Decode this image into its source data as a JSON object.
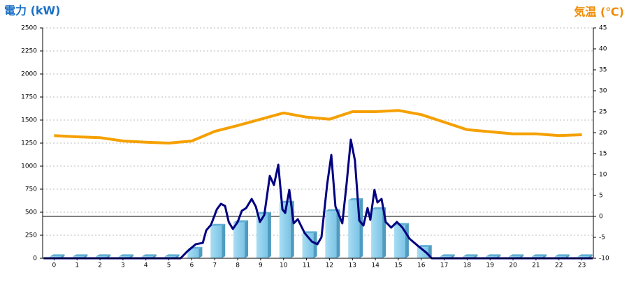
{
  "chart_data": {
    "type": "bar",
    "ylabel": "電力 (kW)",
    "y2label": "気温 (℃)",
    "categories": [
      "0",
      "1",
      "2",
      "3",
      "4",
      "5",
      "6",
      "7",
      "8",
      "9",
      "10",
      "11",
      "12",
      "13",
      "14",
      "15",
      "16",
      "17",
      "18",
      "19",
      "20",
      "21",
      "22",
      "23"
    ],
    "xlim": [
      -0.5,
      23.5
    ],
    "ylim": [
      0,
      2500
    ],
    "yticks": [
      0,
      250,
      500,
      750,
      1000,
      1250,
      1500,
      1750,
      2000,
      2250,
      2500
    ],
    "y2lim": [
      -10,
      45
    ],
    "y2ticks": [
      -10,
      -5,
      0,
      5,
      10,
      15,
      20,
      25,
      30,
      35,
      40,
      45
    ],
    "grid": true,
    "series": [
      {
        "type": "bar",
        "color": "#87ceeb",
        "values": [
          20,
          20,
          20,
          20,
          20,
          20,
          100,
          350,
          390,
          480,
          600,
          270,
          510,
          630,
          530,
          360,
          120,
          20,
          20,
          20,
          20,
          20,
          20,
          20
        ]
      },
      {
        "type": "line",
        "axis": "y2",
        "color": "#f5a000",
        "values": [
          19.3,
          19,
          18.8,
          18,
          17.7,
          17.5,
          18,
          20.3,
          21.7,
          23.2,
          24.7,
          23.7,
          23.2,
          25,
          25,
          25.3,
          24.3,
          22.5,
          20.7,
          20.2,
          19.7,
          19.7,
          19.3,
          19.5
        ]
      },
      {
        "type": "line",
        "color": "#000080",
        "x": [
          -0.46,
          5.51,
          5.81,
          6.17,
          6.48,
          6.63,
          6.84,
          7.09,
          7.27,
          7.45,
          7.61,
          7.79,
          8.0,
          8.18,
          8.37,
          8.61,
          8.79,
          8.97,
          9.16,
          9.4,
          9.58,
          9.77,
          9.95,
          10.07,
          10.25,
          10.44,
          10.62,
          10.92,
          11.23,
          11.47,
          11.65,
          11.9,
          12.08,
          12.26,
          12.56,
          12.75,
          12.93,
          13.11,
          13.3,
          13.48,
          13.66,
          13.78,
          13.96,
          14.09,
          14.27,
          14.45,
          14.69,
          14.94,
          15.18,
          15.49,
          15.85,
          16.22,
          16.46,
          23.47
        ],
        "values": [
          0,
          0,
          76,
          152,
          167,
          303,
          364,
          530,
          591,
          568,
          394,
          318,
          394,
          515,
          545,
          644,
          561,
          394,
          470,
          894,
          795,
          1015,
          530,
          492,
          742,
          379,
          424,
          273,
          182,
          152,
          227,
          803,
          1121,
          561,
          379,
          818,
          1288,
          1061,
          409,
          356,
          545,
          417,
          742,
          606,
          644,
          394,
          333,
          394,
          333,
          212,
          136,
          61,
          0,
          0
        ]
      }
    ]
  }
}
